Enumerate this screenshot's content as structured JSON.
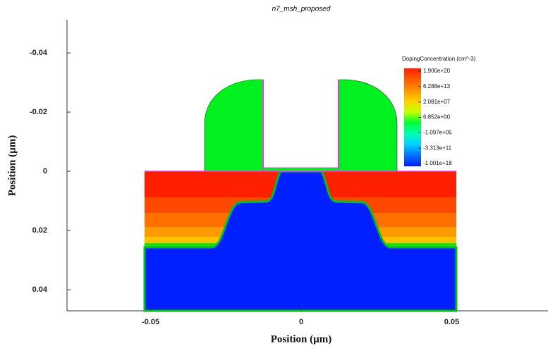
{
  "chart_data": {
    "type": "contour",
    "title": "n7_msh_proposed",
    "x_label": "Position (µm)",
    "y_label": "Position (µm)",
    "xlim": [
      -0.0778,
      0.082
    ],
    "ylim": [
      -0.0512,
      0.0471
    ],
    "xticks": [
      -0.05,
      0,
      0.05
    ],
    "yticks": [
      -0.04,
      -0.02,
      0,
      0.02,
      0.04
    ],
    "colorbar": {
      "title": "DopingConcentration (cm^-3)",
      "ticks": [
        {
          "value": 1.9e+20,
          "label": "1.900e+20"
        },
        {
          "value": 62880000000000.0,
          "label": "6.288e+13"
        },
        {
          "value": 20810000.0,
          "label": "2.081e+07"
        },
        {
          "value": 6.852,
          "label": "6.852e+00"
        },
        {
          "value": -109700.0,
          "label": "-1.097e+05"
        },
        {
          "value": -331300000000.0,
          "label": "-3.313e+11"
        },
        {
          "value": -1.001e+18,
          "label": "-1.001e+18"
        }
      ],
      "colors": [
        "#ff2000",
        "#ff5a00",
        "#ff9000",
        "#ffd000",
        "#c8ff00",
        "#00ff30",
        "#00ffb0",
        "#00d0ff",
        "#0070ff",
        "#0020ff"
      ]
    }
  }
}
